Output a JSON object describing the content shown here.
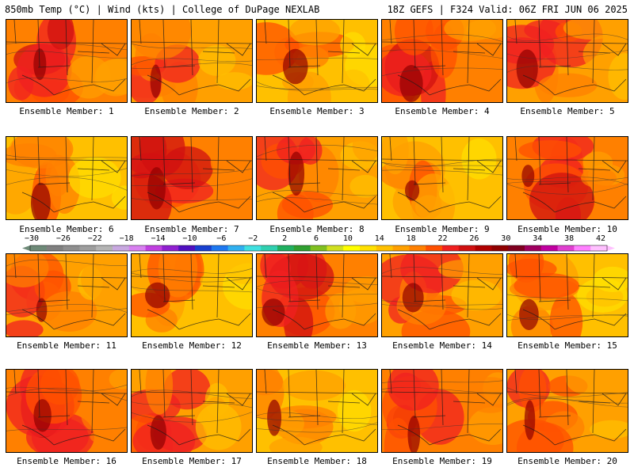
{
  "header": {
    "left_title": "850mb Temp (°C) | Wind (kts) | College of DuPage NEXLAB",
    "right_title": "18Z GEFS | F324 Valid: 06Z FRI JUN 06 2025"
  },
  "members": [
    {
      "label": "Ensemble Member: 1"
    },
    {
      "label": "Ensemble Member: 2"
    },
    {
      "label": "Ensemble Member: 3"
    },
    {
      "label": "Ensemble Member: 4"
    },
    {
      "label": "Ensemble Member: 5"
    },
    {
      "label": "Ensemble Member: 6"
    },
    {
      "label": "Ensemble Member: 7"
    },
    {
      "label": "Ensemble Member: 8"
    },
    {
      "label": "Ensemble Member: 9"
    },
    {
      "label": "Ensemble Member: 10"
    },
    {
      "label": "Ensemble Member: 11"
    },
    {
      "label": "Ensemble Member: 12"
    },
    {
      "label": "Ensemble Member: 13"
    },
    {
      "label": "Ensemble Member: 14"
    },
    {
      "label": "Ensemble Member: 15"
    },
    {
      "label": "Ensemble Member: 16"
    },
    {
      "label": "Ensemble Member: 17"
    },
    {
      "label": "Ensemble Member: 18"
    },
    {
      "label": "Ensemble Member: 19"
    },
    {
      "label": "Ensemble Member: 20"
    }
  ],
  "colorbar": {
    "tick_labels": [
      "−30",
      "−26",
      "−22",
      "−18",
      "−14",
      "−10",
      "−6",
      "−2",
      "2",
      "6",
      "10",
      "14",
      "18",
      "22",
      "26",
      "30",
      "34",
      "38",
      "42"
    ],
    "colors": [
      "#6e8a78",
      "#808080",
      "#8f8f8f",
      "#9e9e9e",
      "#b4b4b4",
      "#c8a8e0",
      "#d880f0",
      "#c040e0",
      "#9020d0",
      "#5010c0",
      "#1840d0",
      "#1e78f0",
      "#30b0f0",
      "#40e0e0",
      "#30d0b0",
      "#20b060",
      "#30a030",
      "#80c020",
      "#d0e020",
      "#ffff00",
      "#ffe000",
      "#ffc000",
      "#ffa000",
      "#ff8000",
      "#ff5000",
      "#f02020",
      "#d01010",
      "#b00000",
      "#900000",
      "#800020",
      "#a00060",
      "#c000a0",
      "#e040d0",
      "#ff80ff",
      "#ffc0ff"
    ]
  }
}
